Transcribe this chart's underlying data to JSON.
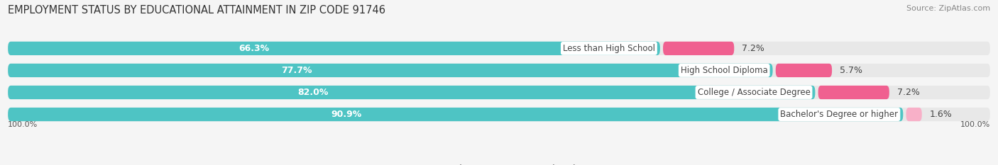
{
  "title": "EMPLOYMENT STATUS BY EDUCATIONAL ATTAINMENT IN ZIP CODE 91746",
  "source": "Source: ZipAtlas.com",
  "categories": [
    "Less than High School",
    "High School Diploma",
    "College / Associate Degree",
    "Bachelor's Degree or higher"
  ],
  "labor_force_pct": [
    66.3,
    77.7,
    82.0,
    90.9
  ],
  "unemployed_pct": [
    7.2,
    5.7,
    7.2,
    1.6
  ],
  "labor_force_color": "#4ec4c4",
  "unemployed_colors": [
    "#f06090",
    "#f06090",
    "#f06090",
    "#f8b0c8"
  ],
  "bar_bg_color": "#e8e8e8",
  "bar_height": 0.62,
  "bar_text_color": "#ffffff",
  "title_fontsize": 10.5,
  "source_fontsize": 8,
  "bar_fontsize": 9,
  "legend_fontsize": 8.5,
  "axis_label_fontsize": 8,
  "x_left_label": "100.0%",
  "x_right_label": "100.0%",
  "bg_color": "#f5f5f5"
}
